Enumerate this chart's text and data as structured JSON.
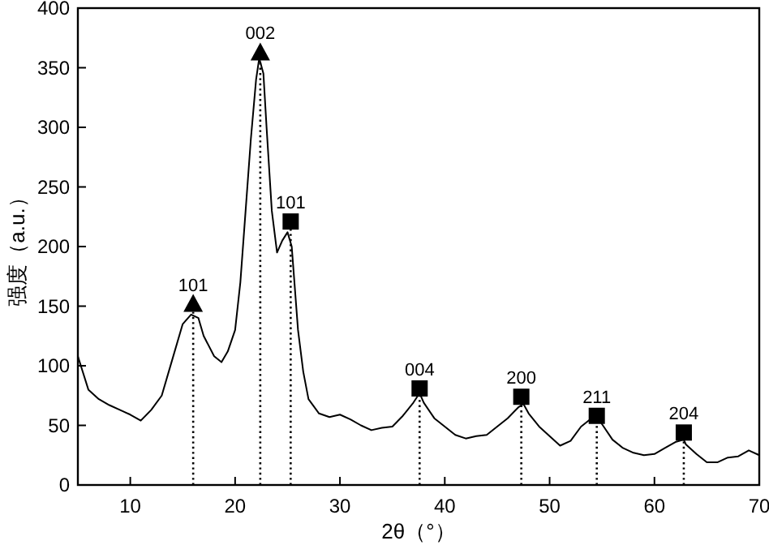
{
  "chart_data": {
    "type": "line",
    "xlabel": "2θ（°）",
    "ylabel": "强度（a.u.）",
    "xlim": [
      5,
      70
    ],
    "xticks": [
      10,
      20,
      30,
      40,
      50,
      60,
      70
    ],
    "ylim": [
      0,
      400
    ],
    "yticks": [
      0,
      50,
      100,
      150,
      200,
      250,
      300,
      350,
      400
    ],
    "grid": false,
    "series": [
      {
        "color": "#000000",
        "x": [
          5,
          6,
          7,
          8,
          9,
          10,
          11,
          12,
          13,
          14,
          15,
          15.8,
          16.5,
          17,
          18,
          18.7,
          19.3,
          20,
          20.5,
          21,
          21.5,
          22,
          22.3,
          22.7,
          23,
          23.5,
          24,
          24.5,
          25,
          25.4,
          26,
          26.5,
          27,
          28,
          29,
          30,
          31,
          32,
          33,
          34,
          35,
          36,
          37,
          37.6,
          38,
          39,
          40,
          41,
          42,
          43,
          44,
          45,
          46,
          47,
          47.5,
          48,
          49,
          50,
          51,
          52,
          53,
          54,
          54.6,
          55,
          56,
          57,
          58,
          59,
          60,
          61,
          62,
          62.8,
          63,
          64,
          65,
          66,
          67,
          68,
          69,
          70
        ],
        "values": [
          108,
          80,
          72,
          67,
          63,
          59,
          54,
          63,
          75,
          105,
          135,
          143,
          140,
          125,
          108,
          103,
          112,
          130,
          170,
          230,
          290,
          340,
          358,
          345,
          300,
          230,
          195,
          205,
          212,
          200,
          130,
          95,
          72,
          60,
          57,
          59,
          55,
          50,
          46,
          48,
          49,
          58,
          69,
          77,
          69,
          56,
          49,
          42,
          39,
          41,
          42,
          49,
          56,
          65,
          68,
          60,
          49,
          41,
          33,
          37,
          49,
          56,
          58,
          51,
          38,
          31,
          27,
          25,
          26,
          31,
          36,
          38,
          34,
          26,
          19,
          19,
          23,
          24,
          29,
          25
        ]
      },
      {
        "type": "lollipop",
        "marker": "triangle",
        "line_style": "dotted",
        "color": "#000000",
        "x": [
          16,
          22.4
        ],
        "values": [
          152,
          363
        ]
      },
      {
        "type": "lollipop",
        "marker": "square",
        "line_style": "dotted",
        "color": "#000000",
        "x": [
          25.3,
          37.6,
          47.3,
          54.5,
          62.8
        ],
        "values": [
          221,
          81,
          74,
          58,
          44
        ]
      }
    ],
    "annotations": [
      {
        "text": "101",
        "x": 16,
        "y": 152
      },
      {
        "text": "002",
        "x": 22.4,
        "y": 363
      },
      {
        "text": "101",
        "x": 25.3,
        "y": 221
      },
      {
        "text": "004",
        "x": 37.6,
        "y": 81
      },
      {
        "text": "200",
        "x": 47.3,
        "y": 74
      },
      {
        "text": "211",
        "x": 54.5,
        "y": 58
      },
      {
        "text": "204",
        "x": 62.8,
        "y": 44
      }
    ]
  }
}
